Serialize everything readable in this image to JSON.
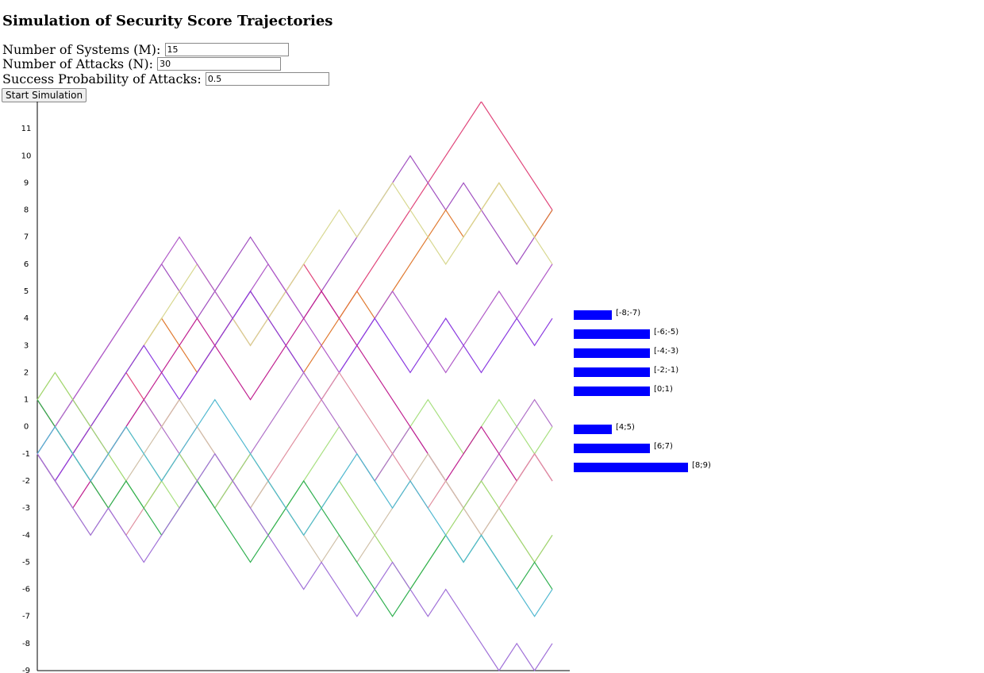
{
  "form": {
    "title": "Simulation of Security Score Trajectories",
    "fields": [
      {
        "label": "Number of Systems (M):",
        "value": "15"
      },
      {
        "label": "Number of Attacks (N):",
        "value": "30"
      },
      {
        "label": "Success Probability of Attacks:",
        "value": "0.5"
      }
    ],
    "button": "Start Simulation"
  },
  "chart_data": [
    {
      "type": "line",
      "xlim": [
        0,
        29
      ],
      "ylim": [
        -9,
        12
      ],
      "yticks": [
        -9,
        -8,
        -7,
        -6,
        -5,
        -4,
        -3,
        -2,
        -1,
        0,
        1,
        2,
        3,
        4,
        5,
        6,
        7,
        8,
        9,
        10,
        11
      ],
      "series": [
        {
          "color": "#e0457a",
          "values": [
            -1,
            -2,
            -1,
            0,
            1,
            2,
            1,
            0,
            1,
            2,
            3,
            4,
            3,
            4,
            5,
            6,
            5,
            4,
            5,
            6,
            7,
            8,
            9,
            10,
            11,
            12,
            11,
            10,
            9,
            8
          ]
        },
        {
          "color": "#a04fc0",
          "values": [
            -1,
            0,
            1,
            2,
            3,
            4,
            5,
            6,
            5,
            4,
            5,
            6,
            7,
            6,
            5,
            4,
            5,
            6,
            7,
            8,
            9,
            10,
            9,
            8,
            9,
            8,
            7,
            6,
            7,
            8
          ]
        },
        {
          "color": "#e07a30",
          "values": [
            1,
            0,
            -1,
            0,
            1,
            2,
            3,
            4,
            3,
            2,
            3,
            4,
            5,
            4,
            3,
            2,
            3,
            4,
            5,
            4,
            5,
            6,
            7,
            8,
            7,
            8,
            9,
            8,
            7,
            8
          ]
        },
        {
          "color": "#d8d890",
          "values": [
            1,
            2,
            1,
            0,
            1,
            2,
            3,
            4,
            5,
            6,
            5,
            4,
            3,
            4,
            5,
            6,
            7,
            8,
            7,
            8,
            9,
            8,
            7,
            6,
            7,
            8,
            9,
            8,
            7,
            6
          ]
        },
        {
          "color": "#b05ac8",
          "values": [
            -1,
            0,
            1,
            2,
            3,
            4,
            5,
            6,
            7,
            6,
            5,
            4,
            5,
            6,
            5,
            4,
            3,
            2,
            3,
            4,
            5,
            4,
            3,
            2,
            3,
            4,
            5,
            4,
            5,
            6
          ]
        },
        {
          "color": "#8a3ae0",
          "values": [
            -1,
            -2,
            -1,
            0,
            1,
            2,
            3,
            2,
            1,
            2,
            3,
            4,
            5,
            4,
            3,
            2,
            1,
            2,
            3,
            4,
            3,
            2,
            3,
            4,
            3,
            2,
            3,
            4,
            3,
            4
          ]
        },
        {
          "color": "#a8e080",
          "values": [
            1,
            0,
            -1,
            -2,
            -1,
            0,
            -1,
            -2,
            -3,
            -2,
            -1,
            -2,
            -3,
            -4,
            -3,
            -2,
            -1,
            0,
            -1,
            -2,
            -1,
            0,
            1,
            0,
            -1,
            0,
            1,
            0,
            -1,
            0
          ]
        },
        {
          "color": "#b070c8",
          "values": [
            1,
            0,
            1,
            0,
            -1,
            0,
            1,
            0,
            -1,
            -2,
            -3,
            -2,
            -1,
            0,
            1,
            2,
            1,
            0,
            -1,
            -2,
            -1,
            0,
            -1,
            -2,
            -3,
            -2,
            -1,
            0,
            1,
            0
          ]
        },
        {
          "color": "#c02090",
          "values": [
            -1,
            -2,
            -3,
            -2,
            -1,
            0,
            1,
            2,
            3,
            4,
            3,
            2,
            1,
            2,
            3,
            4,
            5,
            4,
            3,
            2,
            1,
            0,
            -1,
            -2,
            -1,
            0,
            -1,
            -2,
            -1,
            -2
          ]
        },
        {
          "color": "#e090a0",
          "values": [
            1,
            0,
            -1,
            -2,
            -3,
            -4,
            -3,
            -2,
            -1,
            0,
            -1,
            -2,
            -3,
            -2,
            -1,
            0,
            1,
            2,
            1,
            0,
            -1,
            -2,
            -3,
            -2,
            -3,
            -4,
            -3,
            -2,
            -1,
            -2
          ]
        },
        {
          "color": "#d0c0a8",
          "values": [
            -1,
            -2,
            -3,
            -4,
            -3,
            -2,
            -1,
            0,
            1,
            0,
            -1,
            -2,
            -3,
            -2,
            -3,
            -4,
            -5,
            -4,
            -5,
            -4,
            -3,
            -2,
            -1,
            -2,
            -3,
            -4,
            -3,
            -4,
            -5,
            -4
          ]
        },
        {
          "color": "#a0d870",
          "values": [
            1,
            2,
            1,
            0,
            -1,
            -2,
            -3,
            -2,
            -1,
            -2,
            -3,
            -2,
            -1,
            -2,
            -3,
            -4,
            -3,
            -2,
            -3,
            -4,
            -5,
            -6,
            -5,
            -4,
            -3,
            -2,
            -3,
            -4,
            -5,
            -4
          ]
        },
        {
          "color": "#30b050",
          "values": [
            1,
            0,
            -1,
            -2,
            -3,
            -2,
            -3,
            -4,
            -3,
            -2,
            -3,
            -4,
            -5,
            -4,
            -3,
            -2,
            -3,
            -4,
            -5,
            -6,
            -7,
            -6,
            -5,
            -4,
            -5,
            -4,
            -5,
            -6,
            -5,
            -6
          ]
        },
        {
          "color": "#50b8d0",
          "values": [
            -1,
            0,
            -1,
            -2,
            -1,
            0,
            -1,
            -2,
            -1,
            0,
            1,
            0,
            -1,
            -2,
            -3,
            -4,
            -3,
            -2,
            -1,
            -2,
            -3,
            -2,
            -3,
            -4,
            -5,
            -4,
            -5,
            -6,
            -7,
            -6
          ]
        },
        {
          "color": "#a070d8",
          "values": [
            -1,
            -2,
            -3,
            -4,
            -3,
            -4,
            -5,
            -4,
            -3,
            -2,
            -1,
            -2,
            -3,
            -4,
            -5,
            -6,
            -5,
            -6,
            -7,
            -6,
            -5,
            -6,
            -7,
            -6,
            -7,
            -8,
            -9,
            -8,
            -9,
            -8
          ]
        }
      ]
    },
    {
      "type": "bar",
      "orientation": "horizontal",
      "color": "#0000ff",
      "categories": [
        "[-8;-7)",
        "[-6;-5)",
        "[-4;-3)",
        "[-2;-1)",
        "[0;1)",
        null,
        "[4;5)",
        "[6;7)",
        "[8;9)"
      ],
      "values": [
        1,
        2,
        2,
        2,
        2,
        0,
        1,
        2,
        3
      ]
    }
  ]
}
